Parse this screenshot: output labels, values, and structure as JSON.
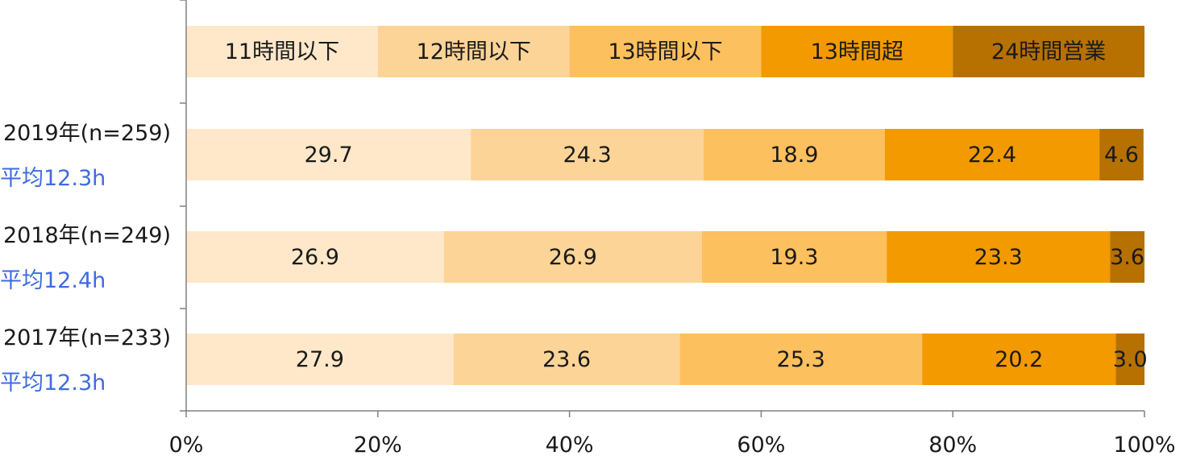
{
  "chart_data": {
    "type": "bar",
    "stacked": true,
    "orientation": "horizontal",
    "percent_stacked": true,
    "legend_bar": {
      "labels": [
        "11時間以下",
        "12時間以下",
        "13時間以下",
        "13時間超",
        "24時間営業"
      ]
    },
    "categories": [
      {
        "label": "2019年(n=259)",
        "average": "平均12.3h"
      },
      {
        "label": "2018年(n=249)",
        "average": "平均12.4h"
      },
      {
        "label": "2017年(n=233)",
        "average": "平均12.3h"
      }
    ],
    "series": [
      {
        "name": "11時間以下",
        "color": "#fee8c9",
        "values": [
          29.7,
          26.9,
          27.9
        ],
        "labels": [
          "29.7",
          "26.9",
          "27.9"
        ]
      },
      {
        "name": "12時間以下",
        "color": "#fdd497",
        "values": [
          24.3,
          26.9,
          23.6
        ],
        "labels": [
          "24.3",
          "26.9",
          "23.6"
        ]
      },
      {
        "name": "13時間以下",
        "color": "#fdc05e",
        "values": [
          18.9,
          19.3,
          25.3
        ],
        "labels": [
          "18.9",
          "19.3",
          "25.3"
        ]
      },
      {
        "name": "13時間超",
        "color": "#f39a00",
        "values": [
          22.4,
          23.3,
          20.2
        ],
        "labels": [
          "22.4",
          "23.3",
          "20.2"
        ]
      },
      {
        "name": "24時間営業",
        "color": "#b77100",
        "values": [
          4.6,
          3.6,
          3.0
        ],
        "labels": [
          "4.6",
          "3.6",
          "3.0"
        ]
      }
    ],
    "xlim": [
      0,
      100
    ],
    "x_ticks": [
      "0%",
      "20%",
      "40%",
      "60%",
      "80%",
      "100%"
    ],
    "grid": false
  }
}
